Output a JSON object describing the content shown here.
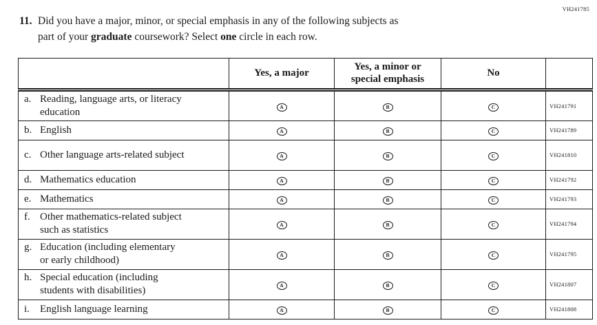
{
  "page_code": "VH241785",
  "question": {
    "number": "11.",
    "line1": "Did you have a major, minor, or special emphasis in any of the following subjects as",
    "line2": {
      "p1": "part of your ",
      "b1": "graduate",
      "p2": " coursework? Select ",
      "b2": "one",
      "p3": " circle in each row."
    }
  },
  "table": {
    "headers": {
      "major": "Yes, a major",
      "minor": "Yes, a minor or special emphasis",
      "no": "No"
    },
    "options": [
      "A",
      "B",
      "C"
    ],
    "rows": [
      {
        "letter": "a.",
        "label": "Reading, language arts, or literacy education",
        "code": "VH241791"
      },
      {
        "letter": "b.",
        "label": "English",
        "code": "VH241789"
      },
      {
        "letter": "c.",
        "label": "Other language arts-related subject",
        "code": "VH241810"
      },
      {
        "letter": "d.",
        "label": "Mathematics education",
        "code": "VH241792"
      },
      {
        "letter": "e.",
        "label": "Mathematics",
        "code": "VH241793"
      },
      {
        "letter": "f.",
        "label": "Other mathematics-related subject such as statistics",
        "code": "VH241794"
      },
      {
        "letter": "g.",
        "label": "Education (including elementary or early childhood)",
        "code": "VH241795"
      },
      {
        "letter": "h.",
        "label": "Special education (including students with disabilities)",
        "code": "VH241807"
      },
      {
        "letter": "i.",
        "label": "English language learning",
        "code": "VH241808"
      }
    ]
  }
}
